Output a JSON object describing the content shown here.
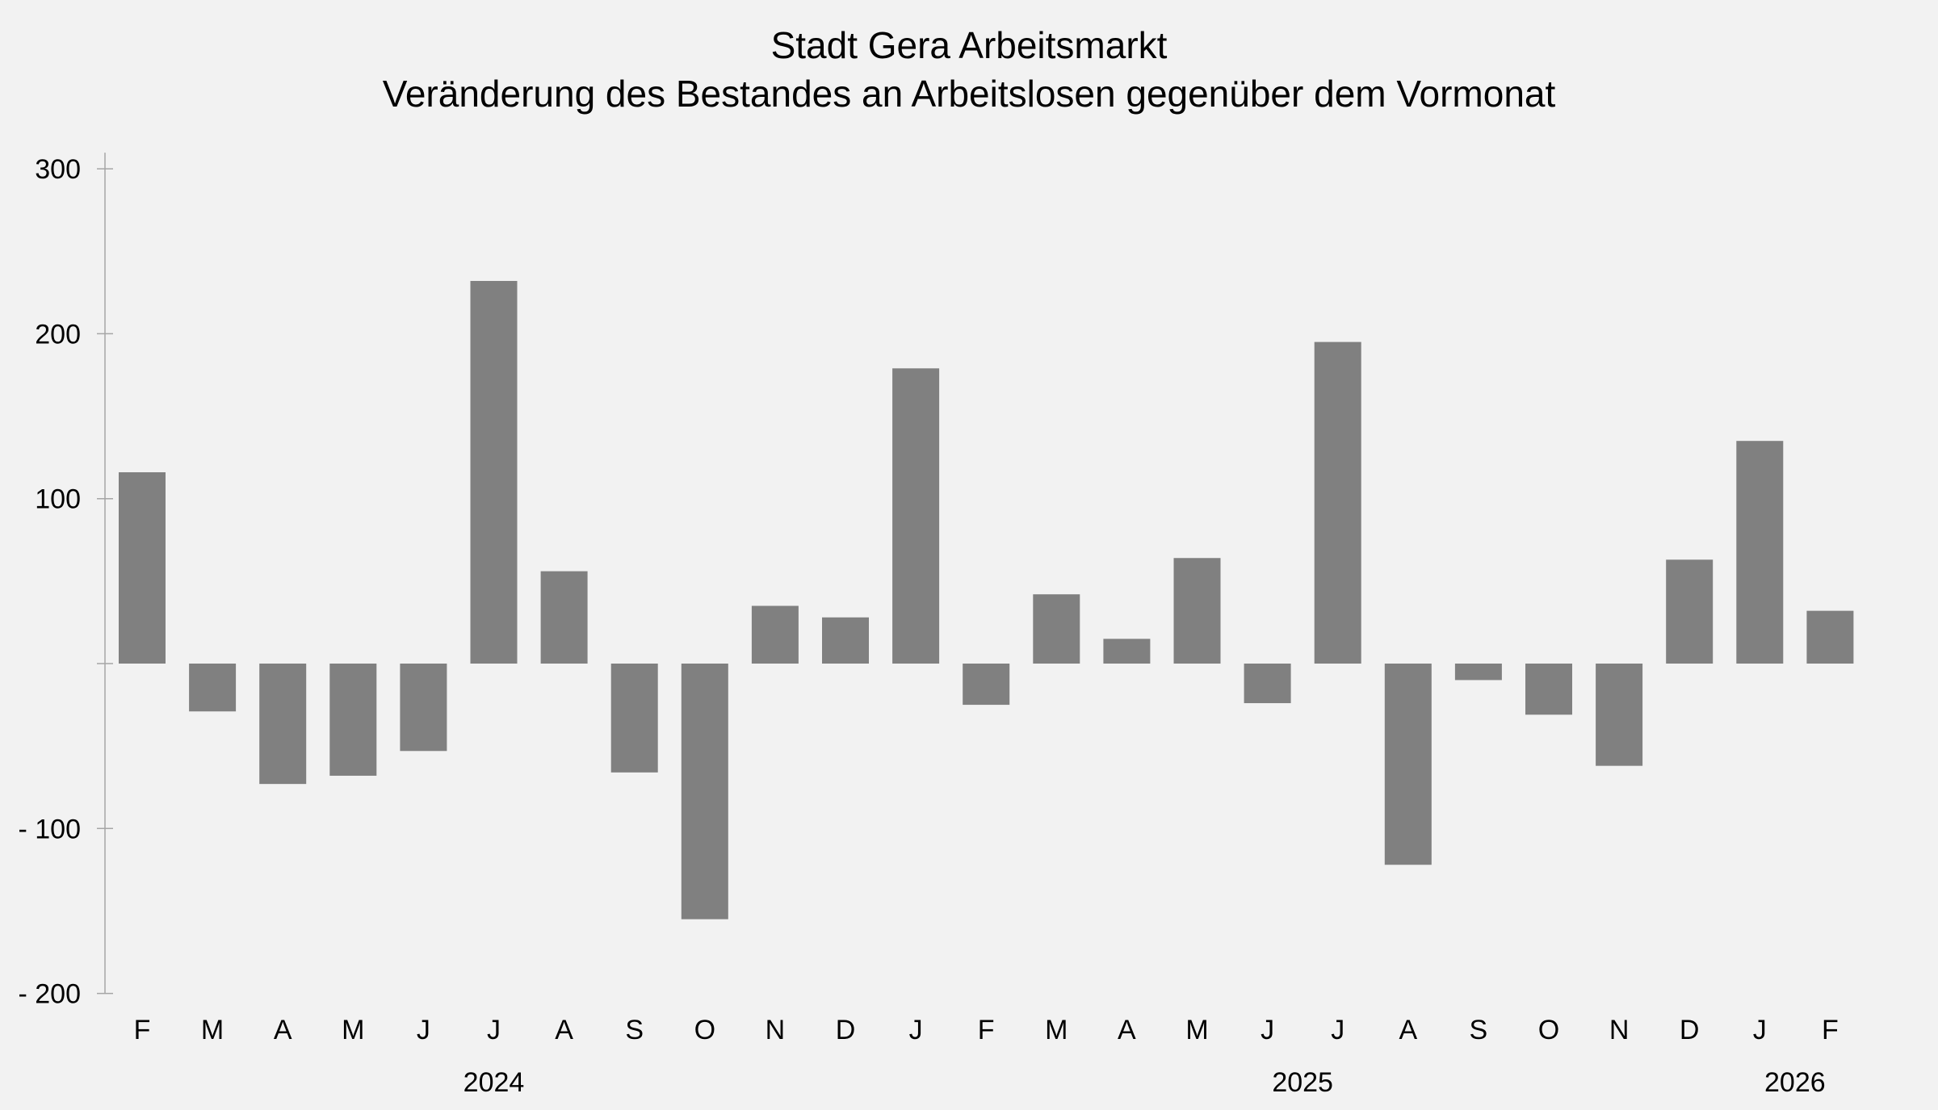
{
  "chart_data": {
    "type": "bar",
    "title": "Stadt Gera Arbeitsmarkt",
    "subtitle": "Veränderung des Bestandes an Arbeitslosen gegenüber dem Vormonat",
    "xlabel": "",
    "ylabel": "",
    "ylim": [
      -200,
      300
    ],
    "yticks": [
      300,
      200,
      100,
      0,
      -100,
      -200
    ],
    "ytick_labels": [
      "300",
      "200",
      "100",
      "",
      "-   100",
      "-   200"
    ],
    "grid": false,
    "categories": [
      "F",
      "M",
      "A",
      "M",
      "J",
      "J",
      "A",
      "S",
      "O",
      "N",
      "D",
      "J",
      "F",
      "M",
      "A",
      "M",
      "J",
      "J",
      "A",
      "S",
      "O",
      "N",
      "D",
      "J",
      "F"
    ],
    "values": [
      116,
      -29,
      -73,
      -68,
      -53,
      232,
      56,
      -66,
      -155,
      35,
      28,
      179,
      -25,
      42,
      15,
      64,
      -24,
      195,
      -122,
      -10,
      -31,
      -62,
      63,
      135,
      32
    ],
    "year_labels": [
      {
        "label": "2024",
        "start": 0,
        "end": 10
      },
      {
        "label": "2025",
        "start": 11,
        "end": 22
      },
      {
        "label": "2026",
        "start": 23,
        "end": 24
      }
    ],
    "colors": {
      "bar": "#808080",
      "background": "#f2f2f2",
      "axis": "#a6a6a6"
    }
  }
}
